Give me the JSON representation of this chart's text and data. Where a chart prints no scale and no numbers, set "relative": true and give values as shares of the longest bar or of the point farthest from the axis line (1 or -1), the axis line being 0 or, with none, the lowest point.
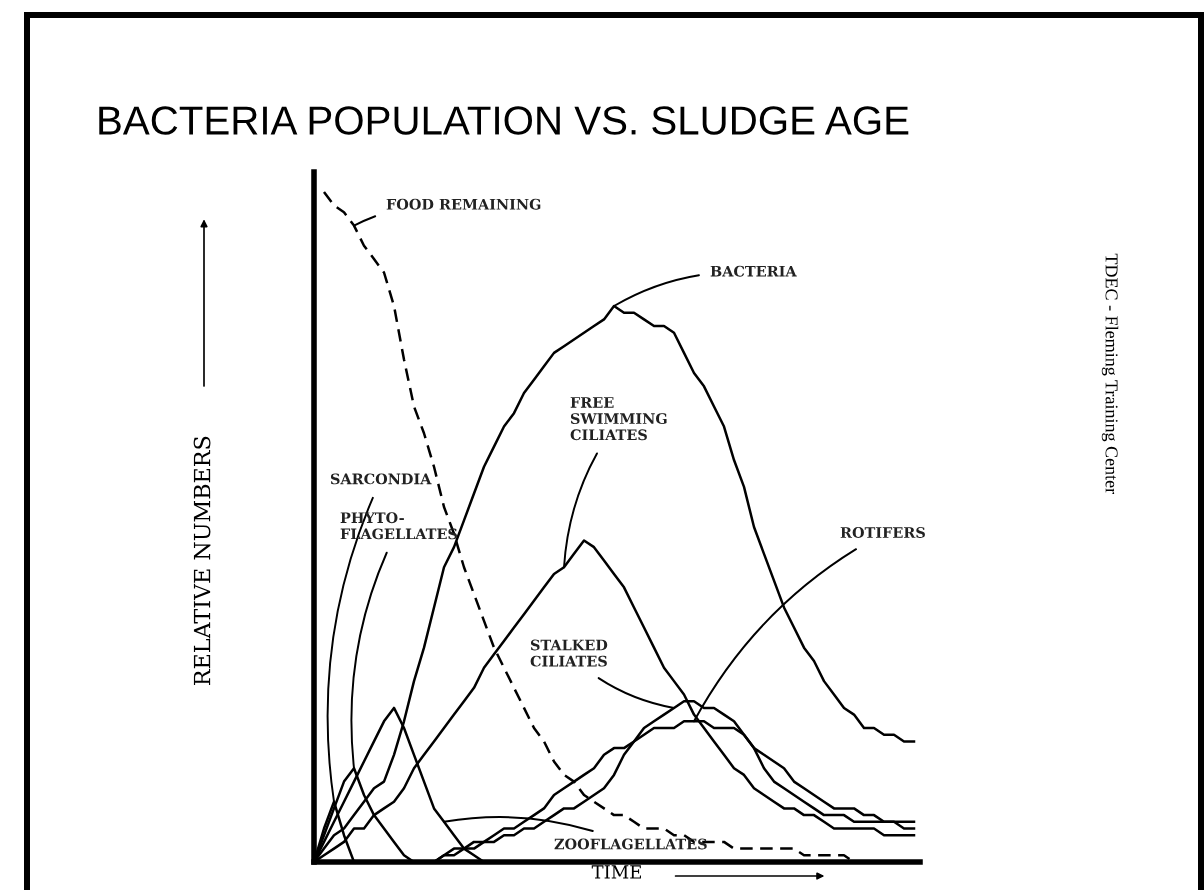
{
  "chart_data": {
    "type": "line",
    "relative": true,
    "title": "BACTERIA POPULATION VS. SLUDGE AGE",
    "xlabel": "TIME",
    "ylabel": "RELATIVE NUMBERS",
    "annotations": [
      "TDEC - Fleming Training Center"
    ],
    "categories": [
      null,
      null,
      null,
      null,
      null,
      null,
      null,
      null,
      null,
      null,
      null,
      null,
      null,
      null,
      null,
      null,
      null,
      null,
      null,
      null,
      null,
      null,
      null,
      null,
      null,
      null,
      null,
      null,
      null,
      null,
      null,
      null,
      null,
      null,
      null,
      null,
      null,
      null,
      null,
      null,
      null,
      null,
      null,
      null,
      null,
      null,
      null,
      null,
      null,
      null,
      null,
      null,
      null,
      null,
      null,
      null,
      null,
      null,
      null,
      null,
      null
    ],
    "legend": false,
    "series": [
      {
        "name": "FOOD REMAINING",
        "color": "#000000",
        "line_style": "dashed",
        "values": [
          null,
          1.0,
          0.98,
          0.97,
          0.95,
          0.92,
          0.9,
          0.88,
          0.83,
          0.75,
          0.68,
          0.64,
          0.59,
          0.53,
          0.49,
          0.44,
          0.4,
          0.36,
          0.32,
          0.29,
          0.26,
          0.23,
          0.2,
          0.18,
          0.15,
          0.13,
          0.12,
          0.1,
          0.09,
          0.08,
          0.07,
          0.07,
          0.06,
          0.05,
          0.05,
          0.05,
          0.04,
          0.04,
          0.03,
          0.03,
          0.03,
          0.03,
          0.02,
          0.02,
          0.02,
          0.02,
          0.02,
          0.02,
          0.02,
          0.01,
          0.01,
          0.01,
          0.01,
          0.01,
          0.0,
          0.0,
          0.0,
          0.0,
          0.0,
          0.0,
          0.0
        ]
      },
      {
        "name": "BACTERIA",
        "color": "#000000",
        "line_style": "solid",
        "values": [
          0,
          0.02,
          0.04,
          0.05,
          0.07,
          0.09,
          0.11,
          0.12,
          0.16,
          0.21,
          0.27,
          0.32,
          0.38,
          0.44,
          0.47,
          0.51,
          0.55,
          0.59,
          0.62,
          0.65,
          0.67,
          0.7,
          0.72,
          0.74,
          0.76,
          0.77,
          0.78,
          0.79,
          0.8,
          0.81,
          0.83,
          0.82,
          0.82,
          0.81,
          0.8,
          0.8,
          0.79,
          0.76,
          0.73,
          0.71,
          0.68,
          0.65,
          0.6,
          0.56,
          0.5,
          0.46,
          0.42,
          0.38,
          0.35,
          0.32,
          0.3,
          0.27,
          0.25,
          0.23,
          0.22,
          0.2,
          0.2,
          0.19,
          0.19,
          0.18,
          0.18
        ]
      },
      {
        "name": "FREE\nSWIMMING\nCILIATES",
        "color": "#000000",
        "line_style": "solid",
        "values": [
          0,
          0.01,
          0.02,
          0.03,
          0.05,
          0.05,
          0.07,
          0.08,
          0.09,
          0.11,
          0.14,
          0.16,
          0.18,
          0.2,
          0.22,
          0.24,
          0.26,
          0.29,
          0.31,
          0.33,
          0.35,
          0.37,
          0.39,
          0.41,
          0.43,
          0.44,
          0.46,
          0.48,
          0.47,
          0.45,
          0.43,
          0.41,
          0.38,
          0.35,
          0.32,
          0.29,
          0.27,
          0.25,
          0.22,
          0.2,
          0.18,
          0.16,
          0.14,
          0.13,
          0.11,
          0.1,
          0.09,
          0.08,
          0.08,
          0.07,
          0.07,
          0.06,
          0.05,
          0.05,
          0.05,
          0.05,
          0.05,
          0.04,
          0.04,
          0.04,
          0.04
        ]
      },
      {
        "name": "SARCONDIA",
        "color": "#000000",
        "line_style": "solid",
        "values": [
          0,
          0.05,
          0.09,
          0.04,
          0.0,
          null,
          null,
          null,
          null,
          null,
          null,
          null,
          null,
          null,
          null,
          null,
          null,
          null,
          null,
          null,
          null,
          null,
          null,
          null,
          null,
          null,
          null,
          null,
          null,
          null,
          null,
          null,
          null,
          null,
          null,
          null,
          null,
          null,
          null,
          null,
          null,
          null,
          null,
          null,
          null,
          null,
          null,
          null,
          null,
          null,
          null,
          null,
          null,
          null,
          null,
          null,
          null,
          null,
          null,
          null,
          null
        ]
      },
      {
        "name": "PHYTO-\nFLAGELLATES",
        "color": "#000000",
        "line_style": "solid",
        "values": [
          0,
          0.04,
          0.08,
          0.12,
          0.14,
          0.1,
          0.07,
          0.05,
          0.03,
          0.01,
          0.0,
          null,
          null,
          null,
          null,
          null,
          null,
          null,
          null,
          null,
          null,
          null,
          null,
          null,
          null,
          null,
          null,
          null,
          null,
          null,
          null,
          null,
          null,
          null,
          null,
          null,
          null,
          null,
          null,
          null,
          null,
          null,
          null,
          null,
          null,
          null,
          null,
          null,
          null,
          null,
          null,
          null,
          null,
          null,
          null,
          null,
          null,
          null,
          null,
          null,
          null
        ]
      },
      {
        "name": "STALKED\nCILIATES",
        "color": "#000000",
        "line_style": "solid",
        "values": [
          null,
          null,
          null,
          null,
          null,
          null,
          null,
          null,
          null,
          null,
          null,
          null,
          0.0,
          0.01,
          0.01,
          0.02,
          0.02,
          0.03,
          0.03,
          0.04,
          0.04,
          0.05,
          0.05,
          0.06,
          0.07,
          0.08,
          0.08,
          0.09,
          0.1,
          0.11,
          0.13,
          0.16,
          0.18,
          0.2,
          0.21,
          0.22,
          0.23,
          0.24,
          0.24,
          0.23,
          0.23,
          0.22,
          0.21,
          0.19,
          0.17,
          0.14,
          0.12,
          0.11,
          0.1,
          0.09,
          0.08,
          0.07,
          0.07,
          0.07,
          0.06,
          0.06,
          0.06,
          0.06,
          0.06,
          0.06,
          0.06
        ]
      },
      {
        "name": "ROTIFERS",
        "color": "#000000",
        "line_style": "solid",
        "values": [
          null,
          null,
          null,
          null,
          null,
          null,
          null,
          null,
          null,
          null,
          null,
          null,
          0.0,
          0.01,
          0.02,
          0.02,
          0.03,
          0.03,
          0.04,
          0.05,
          0.05,
          0.06,
          0.07,
          0.08,
          0.1,
          0.11,
          0.12,
          0.13,
          0.14,
          0.16,
          0.17,
          0.17,
          0.18,
          0.19,
          0.2,
          0.2,
          0.2,
          0.21,
          0.21,
          0.21,
          0.2,
          0.2,
          0.2,
          0.19,
          0.17,
          0.16,
          0.15,
          0.14,
          0.12,
          0.11,
          0.1,
          0.09,
          0.08,
          0.08,
          0.08,
          0.07,
          0.07,
          0.06,
          0.06,
          0.05,
          0.05
        ]
      },
      {
        "name": "ZOOFLAGELLATES",
        "color": "#000000",
        "line_style": "solid",
        "values": [
          0,
          0.03,
          0.06,
          0.09,
          0.12,
          0.15,
          0.18,
          0.21,
          0.23,
          0.2,
          0.16,
          0.12,
          0.08,
          0.06,
          0.04,
          0.02,
          0.01,
          0.0,
          0.0,
          null,
          null,
          null,
          null,
          null,
          null,
          null,
          null,
          null,
          null,
          null,
          null,
          null,
          null,
          null,
          null,
          null,
          null,
          null,
          null,
          null,
          null,
          null,
          null,
          null,
          null,
          null,
          null,
          null,
          null,
          null,
          null,
          null,
          null,
          null,
          null,
          null,
          null,
          null,
          null,
          null,
          null
        ]
      }
    ]
  }
}
